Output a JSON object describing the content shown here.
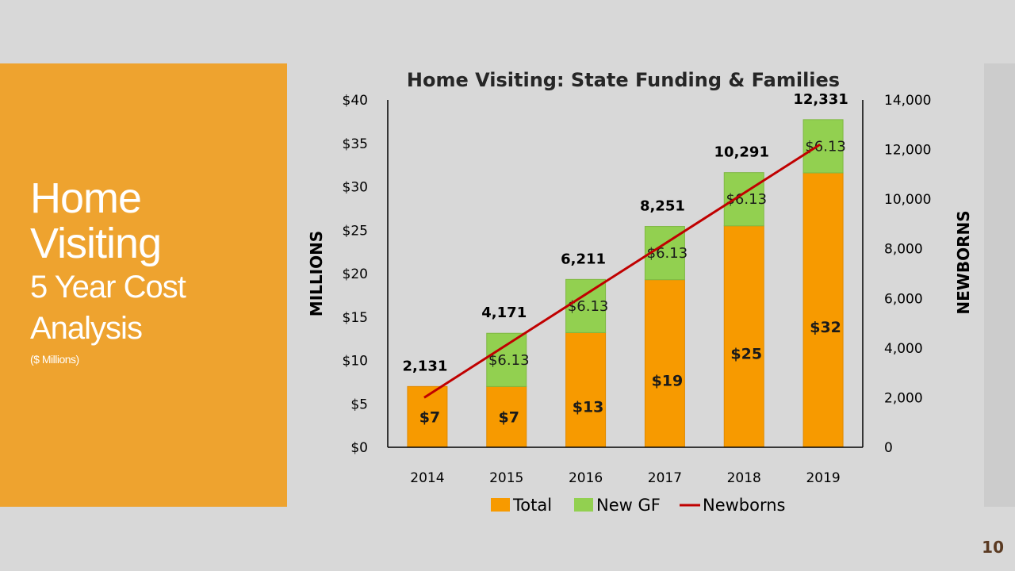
{
  "slide": {
    "title_line1": "Home",
    "title_line2": "Visiting",
    "title_line3": "5 Year Cost",
    "title_line4": "Analysis",
    "title_line5": "($ Millions)",
    "page_number": "10",
    "accent_color": "#eea32f"
  },
  "chart_data": {
    "type": "bar",
    "stacked": true,
    "title": "Home Visiting: State Funding & Families",
    "categories": [
      "2014",
      "2015",
      "2016",
      "2017",
      "2018",
      "2019"
    ],
    "ylabel": "MILLIONS",
    "y2label": "NEWBORNS",
    "ylim": [
      0,
      40
    ],
    "y2lim": [
      0,
      14000
    ],
    "yticks": [
      "$0",
      "$5",
      "$10",
      "$15",
      "$20",
      "$25",
      "$30",
      "$35",
      "$40"
    ],
    "y2ticks": [
      "0",
      "2,000",
      "4,000",
      "6,000",
      "8,000",
      "10,000",
      "12,000",
      "14,000"
    ],
    "series": [
      {
        "name": "Total",
        "color": "#f79a00",
        "values": [
          7,
          7,
          13.2,
          19.3,
          25.5,
          31.6
        ],
        "labels": [
          "$7",
          "$7",
          "$13",
          "$19",
          "$25",
          "$32"
        ]
      },
      {
        "name": "New GF",
        "color": "#92d050",
        "values": [
          0,
          6.13,
          6.13,
          6.13,
          6.13,
          6.13
        ],
        "labels": [
          "",
          "$6.13",
          "$6.13",
          "$6.13",
          "$6.13",
          "$6.13"
        ]
      },
      {
        "name": "Newborns",
        "type": "line",
        "axis": "secondary",
        "color": "#c00000",
        "values": [
          2131,
          4171,
          6211,
          8251,
          10291,
          12331
        ],
        "labels": [
          "2,131",
          "4,171",
          "6,211",
          "8,251",
          "10,291",
          "12,331"
        ]
      }
    ],
    "legend": [
      "Total",
      "New GF",
      "Newborns"
    ],
    "legend_position": "bottom",
    "grid": false
  }
}
